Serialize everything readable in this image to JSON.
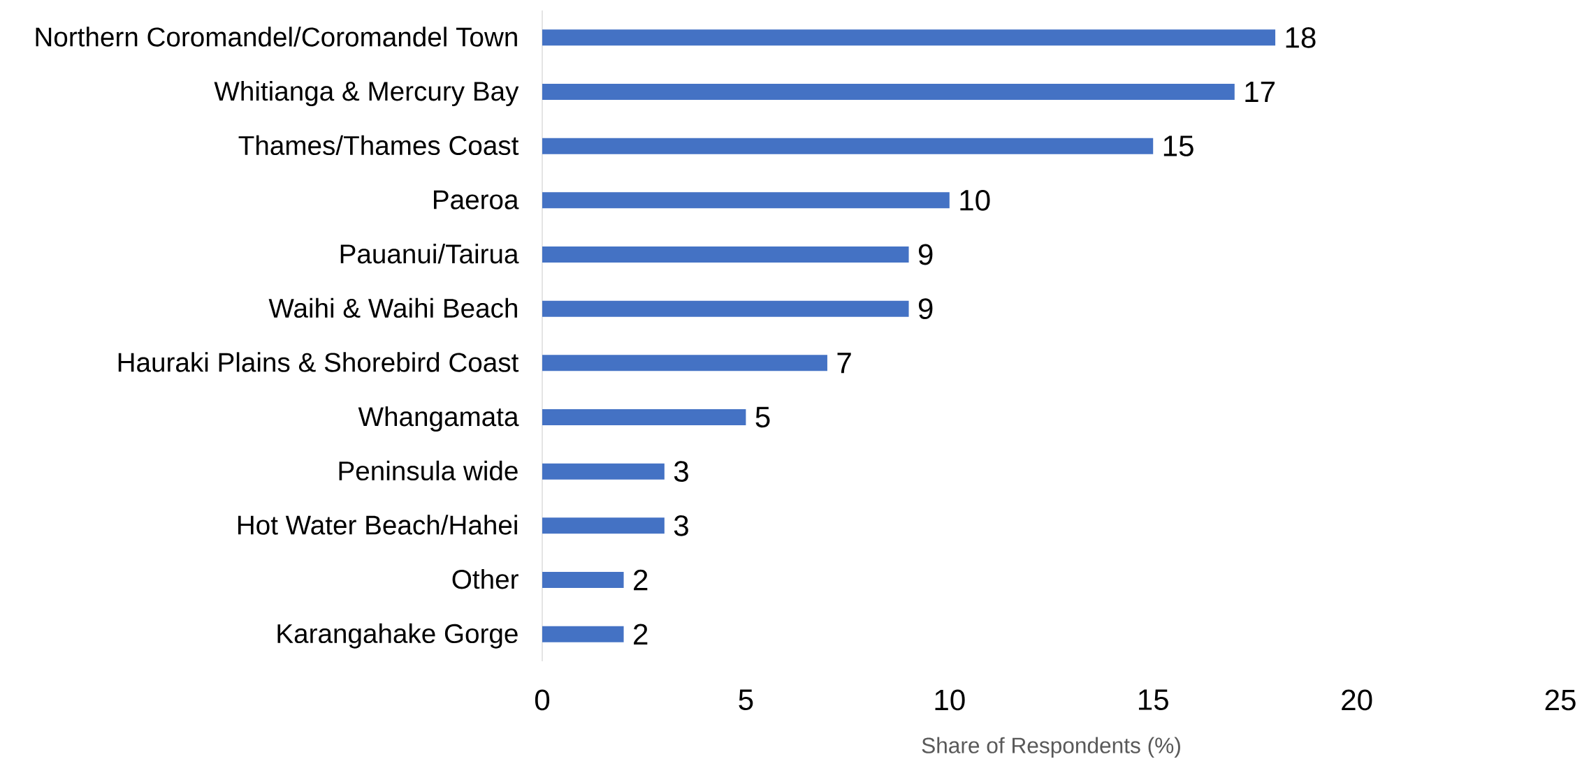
{
  "chart_data": {
    "type": "bar",
    "orientation": "horizontal",
    "xlabel": "Share of Respondents (%)",
    "categories": [
      "Northern Coromandel/Coromandel Town",
      "Whitianga & Mercury Bay",
      "Thames/Thames Coast",
      "Paeroa",
      "Pauanui/Tairua",
      "Waihi & Waihi Beach",
      "Hauraki Plains & Shorebird Coast",
      "Whangamata",
      "Peninsula wide",
      "Hot Water Beach/Hahei",
      "Other",
      "Karangahake Gorge"
    ],
    "values": [
      18,
      17,
      15,
      10,
      9,
      9,
      7,
      5,
      3,
      3,
      2,
      2
    ],
    "color": "#4472c4",
    "xlim": [
      0,
      25
    ],
    "xticks": [
      0,
      5,
      10,
      15,
      20,
      25
    ],
    "data_labels": true,
    "grid": false
  }
}
